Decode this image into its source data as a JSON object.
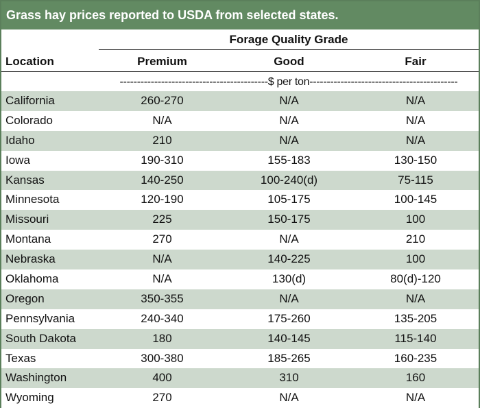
{
  "title": "Grass hay prices reported to USDA from selected states.",
  "header": {
    "group_label": "Forage Quality Grade",
    "location_label": "Location",
    "columns": [
      "Premium",
      "Good",
      "Fair"
    ],
    "units": "-------------------------------------------$ per ton-------------------------------------------"
  },
  "rows": [
    {
      "location": "California",
      "premium": "260-270",
      "good": "N/A",
      "fair": "N/A"
    },
    {
      "location": "Colorado",
      "premium": "N/A",
      "good": "N/A",
      "fair": "N/A"
    },
    {
      "location": "Idaho",
      "premium": "210",
      "good": "N/A",
      "fair": "N/A"
    },
    {
      "location": "Iowa",
      "premium": "190-310",
      "good": "155-183",
      "fair": "130-150"
    },
    {
      "location": "Kansas",
      "premium": "140-250",
      "good": "100-240(d)",
      "fair": "75-115"
    },
    {
      "location": "Minnesota",
      "premium": "120-190",
      "good": "105-175",
      "fair": "100-145"
    },
    {
      "location": "Missouri",
      "premium": "225",
      "good": "150-175",
      "fair": "100"
    },
    {
      "location": "Montana",
      "premium": "270",
      "good": "N/A",
      "fair": "210"
    },
    {
      "location": "Nebraska",
      "premium": "N/A",
      "good": "140-225",
      "fair": "100"
    },
    {
      "location": "Oklahoma",
      "premium": "N/A",
      "good": "130(d)",
      "fair": "80(d)-120"
    },
    {
      "location": "Oregon",
      "premium": "350-355",
      "good": "N/A",
      "fair": "N/A"
    },
    {
      "location": "Pennsylvania",
      "premium": "240-340",
      "good": "175-260",
      "fair": "135-205"
    },
    {
      "location": "South Dakota",
      "premium": "180",
      "good": "140-145",
      "fair": "115-140"
    },
    {
      "location": "Texas",
      "premium": "300-380",
      "good": "185-265",
      "fair": "160-235"
    },
    {
      "location": "Washington",
      "premium": "400",
      "good": "310",
      "fair": "160"
    },
    {
      "location": "Wyoming",
      "premium": "270",
      "good": "N/A",
      "fair": "N/A"
    }
  ],
  "colors": {
    "title_bg": "#628a62",
    "stripe": "#cdd9cd",
    "border": "#5b7f5b"
  }
}
